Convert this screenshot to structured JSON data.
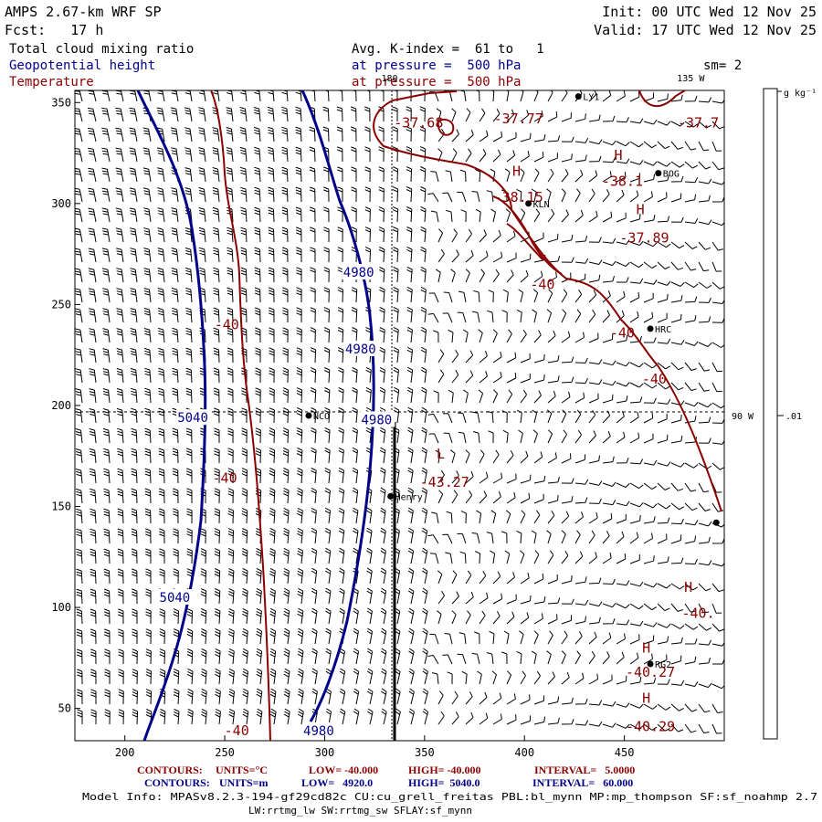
{
  "header": {
    "left": [
      {
        "text": "AMPS 2.67-km WRF SP",
        "color": "#000000"
      },
      {
        "text": "Fcst:   17 h",
        "color": "#000000"
      }
    ],
    "right": [
      {
        "text": "Init: 00 UTC Wed 12 Nov 25"
      },
      {
        "text": "Valid: 17 UTC Wed 12 Nov 25"
      }
    ],
    "fields": [
      {
        "text": "Total cloud mixing ratio",
        "color": "#000000"
      },
      {
        "text": "Geopotential height",
        "color": "#00008b"
      },
      {
        "text": "Temperature",
        "color": "#8b0000"
      }
    ],
    "levels": [
      {
        "text": "Avg. K-index =  61 to   1",
        "color": "#000000"
      },
      {
        "text": "at pressure =  500 hPa",
        "color": "#00008b"
      },
      {
        "text": "at pressure =  500 hPa",
        "color": "#8b0000"
      }
    ],
    "smoothing": "sm= 2"
  },
  "map": {
    "x_ticks": [
      200,
      250,
      300,
      350,
      400,
      450
    ],
    "y_ticks": [
      50,
      100,
      150,
      200,
      250,
      300,
      350
    ],
    "x_range": [
      175,
      500
    ],
    "y_range": [
      34,
      356
    ],
    "meridian_labels": [
      {
        "text": "180",
        "x": 332,
        "y": 356
      },
      {
        "text": "135 W",
        "x": 480,
        "y": 356
      },
      {
        "text": "90 W",
        "x": 500,
        "y": 195
      }
    ],
    "colorbar": {
      "unit": "g kg⁻¹",
      "tick_label": ".01"
    },
    "stations": [
      {
        "name": "NCO",
        "x": 292,
        "y": 195
      },
      {
        "name": "Henry",
        "x": 333,
        "y": 155
      },
      {
        "name": "KLN",
        "x": 402,
        "y": 300
      },
      {
        "name": "BOG",
        "x": 467,
        "y": 315
      },
      {
        "name": "HRC",
        "x": 463,
        "y": 238
      },
      {
        "name": "RG2",
        "x": 463,
        "y": 72
      },
      {
        "name": "LY1",
        "x": 427,
        "y": 353
      },
      {
        "name": "",
        "x": 496,
        "y": 142
      }
    ],
    "height_labels": [
      {
        "text": "4980",
        "x": 317,
        "y": 266
      },
      {
        "text": "4980",
        "x": 318,
        "y": 228
      },
      {
        "text": "4980",
        "x": 326,
        "y": 193
      },
      {
        "text": "4980",
        "x": 297,
        "y": 39
      },
      {
        "text": "5040",
        "x": 234,
        "y": 194
      },
      {
        "text": "5040",
        "x": 225,
        "y": 105
      }
    ],
    "temperature_labels": [
      {
        "text": "-37.68",
        "x": 347,
        "y": 340
      },
      {
        "text": "-37.77",
        "x": 397,
        "y": 342
      },
      {
        "text": "-37.7",
        "x": 487,
        "y": 340
      },
      {
        "text": "H",
        "x": 447,
        "y": 324
      },
      {
        "text": "-38.1",
        "x": 449,
        "y": 311
      },
      {
        "text": "H",
        "x": 396,
        "y": 316
      },
      {
        "text": "-38.15",
        "x": 397,
        "y": 303
      },
      {
        "text": "H",
        "x": 458,
        "y": 297
      },
      {
        "text": "-37.89",
        "x": 460,
        "y": 283
      },
      {
        "text": "-40",
        "x": 409,
        "y": 260
      },
      {
        "text": "-40",
        "x": 251,
        "y": 240
      },
      {
        "text": "-40",
        "x": 449,
        "y": 236
      },
      {
        "text": "-40",
        "x": 465,
        "y": 213
      },
      {
        "text": "-40",
        "x": 250,
        "y": 164
      },
      {
        "text": "L",
        "x": 358,
        "y": 176
      },
      {
        "text": "-43.27",
        "x": 360,
        "y": 162
      },
      {
        "text": "H",
        "x": 482,
        "y": 110
      },
      {
        "text": "-40.",
        "x": 487,
        "y": 97
      },
      {
        "text": "H",
        "x": 461,
        "y": 80
      },
      {
        "text": "-40.27",
        "x": 463,
        "y": 68
      },
      {
        "text": "H",
        "x": 461,
        "y": 55
      },
      {
        "text": "-40.29",
        "x": 463,
        "y": 41
      },
      {
        "text": "-40",
        "x": 256,
        "y": 39
      }
    ]
  },
  "footer": {
    "contours_temp": {
      "label": "CONTOURS:",
      "units": "UNITS=°C",
      "low": "LOW= -40.000",
      "high": "HIGH= -40.000",
      "interval": "INTERVAL=   5.0000"
    },
    "contours_height": {
      "label": "CONTOURS:",
      "units": "UNITS=m",
      "low": "LOW=   4920.0",
      "high": "HIGH=  5040.0",
      "interval": "INTERVAL=   60.000"
    },
    "model_info": "Model Info: MPASv8.2.3-194-gf29cd82c CU:cu_grell_freitas PBL:bl_mynn MP:mp_thompson SF:sf_noahmp 2.7",
    "model_info_2": "LW:rrtmg_lw SW:rrtmg_sw SFLAY:sf_mynn"
  },
  "colors": {
    "temperature": "#8b0000",
    "height": "#00008b",
    "text": "#000000"
  }
}
